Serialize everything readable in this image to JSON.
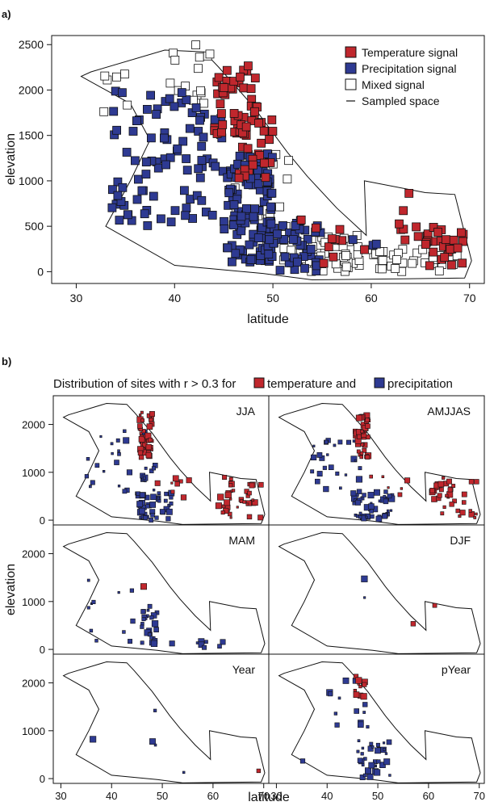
{
  "panel_a": {
    "label": "a)",
    "legend": [
      {
        "label": "Temperature signal",
        "kind": "temp"
      },
      {
        "label": "Precipitation signal",
        "kind": "precip"
      },
      {
        "label": "Mixed signal",
        "kind": "mixed"
      },
      {
        "label": "Sampled space",
        "kind": "line"
      }
    ]
  },
  "panel_b": {
    "label": "b)",
    "title_prefix": "Distribution of sites with r > 0.3 for",
    "title_temp": "temperature and",
    "title_precip": "precipitation"
  },
  "colors": {
    "temperature": "#c0272d",
    "precipitation": "#2e3a92",
    "mixed": "#ffffff",
    "outline": "#111111"
  },
  "chart_data": [
    {
      "id": "a",
      "type": "scatter",
      "xlabel": "latitude",
      "ylabel": "elevation",
      "xlim": [
        27.5,
        71.5
      ],
      "ylim": [
        -130,
        2600
      ],
      "xticks": [
        "30",
        "40",
        "50",
        "60",
        "70"
      ],
      "yticks": [
        "0",
        "500",
        "1000",
        "1500",
        "2000",
        "2500"
      ],
      "sampled_space": [
        [
          31.5,
          2200
        ],
        [
          39.0,
          2440
        ],
        [
          43.0,
          2420
        ],
        [
          44.5,
          2250
        ],
        [
          48.0,
          1820
        ],
        [
          51.5,
          1310
        ],
        [
          53.5,
          1050
        ],
        [
          56.5,
          700
        ],
        [
          59.5,
          400
        ],
        [
          59.3,
          1000
        ],
        [
          65.5,
          870
        ],
        [
          68.5,
          850
        ],
        [
          70.2,
          120
        ],
        [
          69.5,
          -70
        ],
        [
          54,
          -90
        ],
        [
          49,
          -20
        ],
        [
          40,
          70
        ],
        [
          33,
          500
        ],
        [
          35.5,
          1000
        ],
        [
          37.5,
          1450
        ],
        [
          35.5,
          1850
        ],
        [
          30.5,
          2150
        ]
      ],
      "clusters": [
        {
          "kind": "temp",
          "lat": [
            44.0,
            48.5
          ],
          "elev": [
            1500,
            2300
          ],
          "n": 45
        },
        {
          "kind": "temp",
          "lat": [
            46.5,
            50.0
          ],
          "elev": [
            1000,
            1700
          ],
          "n": 25
        },
        {
          "kind": "temp",
          "lat": [
            61.0,
            65.0
          ],
          "elev": [
            300,
            900
          ],
          "n": 8
        },
        {
          "kind": "temp",
          "lat": [
            65.5,
            69.5
          ],
          "elev": [
            50,
            500
          ],
          "n": 30
        },
        {
          "kind": "temp",
          "lat": [
            51.0,
            60.0
          ],
          "elev": [
            50,
            600
          ],
          "n": 10
        },
        {
          "kind": "precip",
          "lat": [
            33.5,
            45.0
          ],
          "elev": [
            500,
            2000
          ],
          "n": 90
        },
        {
          "kind": "precip",
          "lat": [
            45.0,
            50.0
          ],
          "elev": [
            100,
            1300
          ],
          "n": 120
        },
        {
          "kind": "precip",
          "lat": [
            49.5,
            55.0
          ],
          "elev": [
            0,
            600
          ],
          "n": 45
        },
        {
          "kind": "precip",
          "lat": [
            58.0,
            61.0
          ],
          "elev": [
            250,
            550
          ],
          "n": 3
        },
        {
          "kind": "mixed",
          "lat": [
            39.0,
            44.0
          ],
          "elev": [
            1700,
            2500
          ],
          "n": 15
        },
        {
          "kind": "mixed",
          "lat": [
            51.0,
            60.5
          ],
          "elev": [
            0,
            400
          ],
          "n": 55
        },
        {
          "kind": "mixed",
          "lat": [
            60.0,
            69.0
          ],
          "elev": [
            0,
            250
          ],
          "n": 30
        },
        {
          "kind": "mixed",
          "lat": [
            46.0,
            52.0
          ],
          "elev": [
            200,
            1300
          ],
          "n": 20
        },
        {
          "kind": "mixed",
          "lat": [
            32.0,
            36.0
          ],
          "elev": [
            1700,
            2200
          ],
          "n": 6
        }
      ]
    },
    {
      "id": "b",
      "type": "scatter",
      "xlabel": "latitude",
      "ylabel": "elevation",
      "xlim": [
        28.5,
        71
      ],
      "ylim": [
        -100,
        2600
      ],
      "xticks": [
        "30",
        "40",
        "50",
        "60",
        "70"
      ],
      "yticks": [
        "0",
        "1000",
        "2000"
      ],
      "sampled_space": [
        [
          31.5,
          2200
        ],
        [
          39.0,
          2440
        ],
        [
          43.0,
          2420
        ],
        [
          44.5,
          2250
        ],
        [
          48.0,
          1820
        ],
        [
          51.5,
          1310
        ],
        [
          53.5,
          1050
        ],
        [
          56.5,
          700
        ],
        [
          59.5,
          400
        ],
        [
          59.3,
          1000
        ],
        [
          65.5,
          870
        ],
        [
          68.5,
          850
        ],
        [
          70.2,
          120
        ],
        [
          69.5,
          -70
        ],
        [
          54,
          -90
        ],
        [
          49,
          -20
        ],
        [
          40,
          70
        ],
        [
          33,
          500
        ],
        [
          35.5,
          1000
        ],
        [
          37.5,
          1450
        ],
        [
          35.5,
          1850
        ],
        [
          30.5,
          2150
        ]
      ],
      "panels": [
        {
          "name": "JJA",
          "clusters": [
            {
              "kind": "temp",
              "lat": [
                45.5,
                48.0
              ],
              "elev": [
                1300,
                2250
              ],
              "n": 45
            },
            {
              "kind": "temp",
              "lat": [
                48.0,
                56.0
              ],
              "elev": [
                250,
                1000
              ],
              "n": 8
            },
            {
              "kind": "temp",
              "lat": [
                60.5,
                69.5
              ],
              "elev": [
                50,
                900
              ],
              "n": 38
            },
            {
              "kind": "precip",
              "lat": [
                45.0,
                52.0
              ],
              "elev": [
                0,
                600
              ],
              "n": 45
            },
            {
              "kind": "precip",
              "lat": [
                35.0,
                47.0
              ],
              "elev": [
                600,
                1900
              ],
              "n": 25
            },
            {
              "kind": "precip",
              "lat": [
                46.0,
                49.0
              ],
              "elev": [
                500,
                1200
              ],
              "n": 10
            }
          ]
        },
        {
          "name": "AMJJAS",
          "clusters": [
            {
              "kind": "temp",
              "lat": [
                45.5,
                48.5
              ],
              "elev": [
                1300,
                2250
              ],
              "n": 40
            },
            {
              "kind": "temp",
              "lat": [
                48.5,
                56.0
              ],
              "elev": [
                300,
                1000
              ],
              "n": 6
            },
            {
              "kind": "temp",
              "lat": [
                60.5,
                69.5
              ],
              "elev": [
                50,
                900
              ],
              "n": 35
            },
            {
              "kind": "precip",
              "lat": [
                45.0,
                53.0
              ],
              "elev": [
                0,
                600
              ],
              "n": 50
            },
            {
              "kind": "precip",
              "lat": [
                37.0,
                47.0
              ],
              "elev": [
                500,
                1700
              ],
              "n": 25
            }
          ]
        },
        {
          "name": "MAM",
          "clusters": [
            {
              "kind": "temp",
              "lat": [
                46.0,
                46.5
              ],
              "elev": [
                1250,
                1350
              ],
              "n": 1
            },
            {
              "kind": "precip",
              "lat": [
                34.0,
                50.0
              ],
              "elev": [
                0,
                1600
              ],
              "n": 14
            },
            {
              "kind": "precip",
              "lat": [
                46.0,
                49.0
              ],
              "elev": [
                100,
                900
              ],
              "n": 22
            },
            {
              "kind": "precip",
              "lat": [
                50.0,
                62.0
              ],
              "elev": [
                30,
                200
              ],
              "n": 8
            }
          ]
        },
        {
          "name": "DJF",
          "clusters": [
            {
              "kind": "precip",
              "lat": [
                47.0,
                47.5
              ],
              "elev": [
                1050,
                1600
              ],
              "n": 2
            },
            {
              "kind": "temp",
              "lat": [
                61.0,
                62.0
              ],
              "elev": [
                880,
                950
              ],
              "n": 1
            },
            {
              "kind": "temp",
              "lat": [
                56.0,
                57.0
              ],
              "elev": [
                500,
                560
              ],
              "n": 1
            }
          ]
        },
        {
          "name": "Year",
          "clusters": [
            {
              "kind": "precip",
              "lat": [
                48.5,
                49.0
              ],
              "elev": [
                1400,
                1500
              ],
              "n": 1
            },
            {
              "kind": "precip",
              "lat": [
                47.5,
                49.5
              ],
              "elev": [
                700,
                800
              ],
              "n": 2
            },
            {
              "kind": "precip",
              "lat": [
                36.0,
                37.0
              ],
              "elev": [
                800,
                850
              ],
              "n": 1
            },
            {
              "kind": "precip",
              "lat": [
                54.0,
                54.5
              ],
              "elev": [
                100,
                180
              ],
              "n": 1
            },
            {
              "kind": "temp",
              "lat": [
                68.5,
                69.0
              ],
              "elev": [
                120,
                170
              ],
              "n": 1
            }
          ]
        },
        {
          "name": "pYear",
          "clusters": [
            {
              "kind": "temp",
              "lat": [
                45.5,
                47.5
              ],
              "elev": [
                1700,
                2150
              ],
              "n": 12
            },
            {
              "kind": "precip",
              "lat": [
                40.0,
                48.0
              ],
              "elev": [
                1000,
                2100
              ],
              "n": 14
            },
            {
              "kind": "precip",
              "lat": [
                46.0,
                52.5
              ],
              "elev": [
                0,
                800
              ],
              "n": 35
            },
            {
              "kind": "precip",
              "lat": [
                34.5,
                35.5
              ],
              "elev": [
                300,
                400
              ],
              "n": 1
            }
          ]
        }
      ]
    }
  ]
}
